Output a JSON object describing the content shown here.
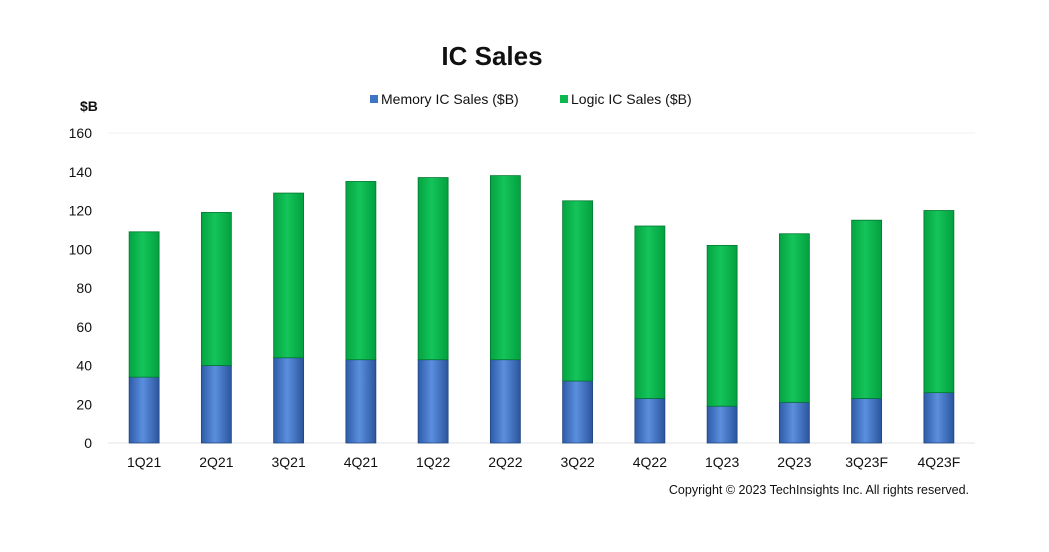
{
  "chart_data": {
    "type": "bar",
    "stacked": true,
    "title": "IC Sales",
    "ylabel": "$B",
    "xlabel": "",
    "ylim": [
      0,
      160
    ],
    "yticks": [
      0,
      20,
      40,
      60,
      80,
      100,
      120,
      140,
      160
    ],
    "grid": false,
    "legend_position": "top",
    "categories": [
      "1Q21",
      "2Q21",
      "3Q21",
      "4Q21",
      "1Q22",
      "2Q22",
      "3Q22",
      "4Q22",
      "1Q23",
      "2Q23",
      "3Q23F",
      "4Q23F"
    ],
    "series": [
      {
        "name": "Memory IC Sales ($B)",
        "color": "#3f73c4",
        "values": [
          34,
          40,
          44,
          43,
          43,
          43,
          32,
          23,
          19,
          21,
          23,
          26
        ]
      },
      {
        "name": "Logic IC Sales ($B)",
        "color": "#0cb84e",
        "values": [
          75,
          79,
          85,
          92,
          94,
          95,
          93,
          89,
          83,
          87,
          92,
          94
        ]
      }
    ]
  },
  "footer": {
    "copyright": "Copyright © 2023 TechInsights Inc.  All rights reserved."
  }
}
